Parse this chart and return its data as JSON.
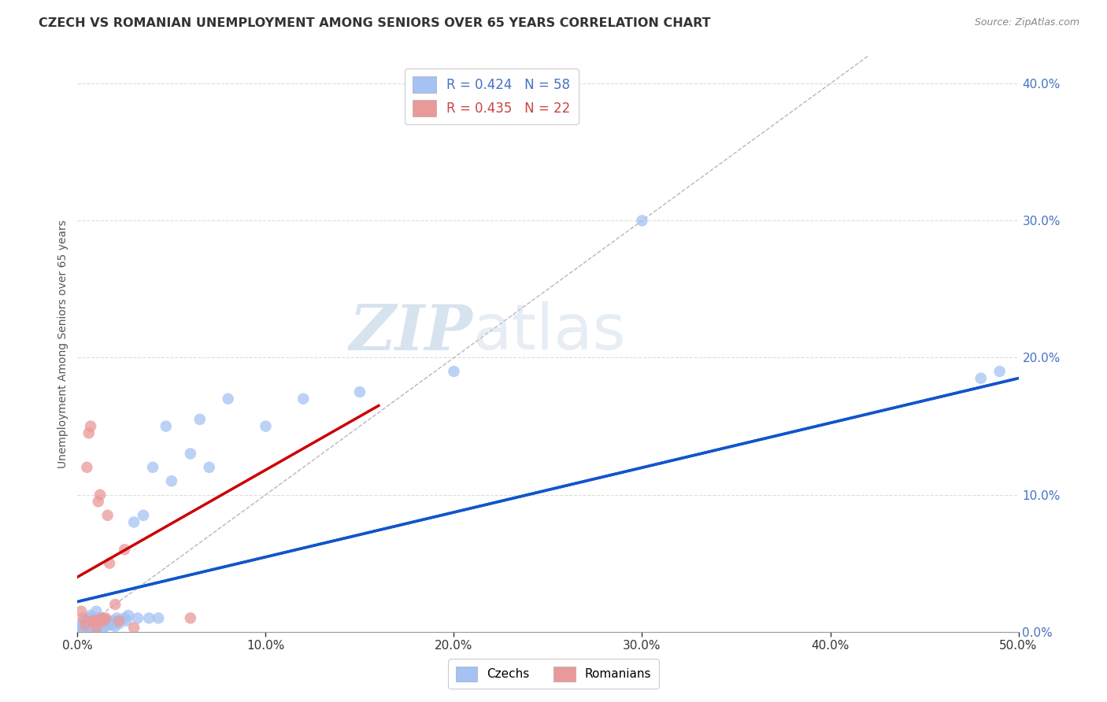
{
  "title": "CZECH VS ROMANIAN UNEMPLOYMENT AMONG SENIORS OVER 65 YEARS CORRELATION CHART",
  "source": "Source: ZipAtlas.com",
  "ylabel": "Unemployment Among Seniors over 65 years",
  "xlim": [
    0.0,
    0.5
  ],
  "ylim": [
    0.0,
    0.42
  ],
  "xlabel_ticks": [
    0.0,
    0.1,
    0.2,
    0.3,
    0.4,
    0.5
  ],
  "ylabel_ticks": [
    0.0,
    0.1,
    0.2,
    0.3,
    0.4
  ],
  "czech_R": 0.424,
  "czech_N": 58,
  "romanian_R": 0.435,
  "romanian_N": 22,
  "czech_color": "#a4c2f4",
  "romanian_color": "#ea9999",
  "czech_line_color": "#1155cc",
  "romanian_line_color": "#cc0000",
  "diagonal_color": "#b0b0b0",
  "watermark_zip": "ZIP",
  "watermark_atlas": "atlas",
  "background_color": "#ffffff",
  "grid_color": "#dddddd",
  "legend_label_czech": "Czechs",
  "legend_label_romanian": "Romanians",
  "czech_points_x": [
    0.002,
    0.002,
    0.003,
    0.003,
    0.004,
    0.004,
    0.005,
    0.005,
    0.006,
    0.006,
    0.007,
    0.007,
    0.008,
    0.008,
    0.009,
    0.009,
    0.01,
    0.01,
    0.01,
    0.01,
    0.011,
    0.011,
    0.012,
    0.012,
    0.013,
    0.013,
    0.014,
    0.015,
    0.015,
    0.016,
    0.017,
    0.018,
    0.019,
    0.02,
    0.021,
    0.022,
    0.025,
    0.026,
    0.027,
    0.03,
    0.032,
    0.035,
    0.038,
    0.04,
    0.043,
    0.047,
    0.05,
    0.06,
    0.065,
    0.07,
    0.08,
    0.1,
    0.12,
    0.15,
    0.2,
    0.3,
    0.48,
    0.49
  ],
  "czech_points_y": [
    0.002,
    0.005,
    0.002,
    0.007,
    0.003,
    0.005,
    0.003,
    0.008,
    0.003,
    0.01,
    0.004,
    0.012,
    0.003,
    0.009,
    0.003,
    0.01,
    0.003,
    0.006,
    0.01,
    0.015,
    0.005,
    0.008,
    0.004,
    0.01,
    0.003,
    0.008,
    0.006,
    0.004,
    0.009,
    0.005,
    0.007,
    0.005,
    0.008,
    0.004,
    0.01,
    0.006,
    0.01,
    0.008,
    0.012,
    0.08,
    0.01,
    0.085,
    0.01,
    0.12,
    0.01,
    0.15,
    0.11,
    0.13,
    0.155,
    0.12,
    0.17,
    0.15,
    0.17,
    0.175,
    0.19,
    0.3,
    0.185,
    0.19
  ],
  "romanian_points_x": [
    0.002,
    0.003,
    0.004,
    0.005,
    0.006,
    0.007,
    0.008,
    0.009,
    0.01,
    0.01,
    0.011,
    0.012,
    0.013,
    0.014,
    0.015,
    0.016,
    0.017,
    0.02,
    0.022,
    0.025,
    0.03,
    0.06
  ],
  "romanian_points_y": [
    0.015,
    0.01,
    0.005,
    0.12,
    0.145,
    0.15,
    0.008,
    0.008,
    0.003,
    0.008,
    0.095,
    0.1,
    0.01,
    0.008,
    0.01,
    0.085,
    0.05,
    0.02,
    0.008,
    0.06,
    0.003,
    0.01
  ],
  "czech_line_x0": 0.0,
  "czech_line_y0": 0.022,
  "czech_line_x1": 0.5,
  "czech_line_y1": 0.185,
  "romanian_line_x0": 0.0,
  "romanian_line_y0": 0.04,
  "romanian_line_x1": 0.16,
  "romanian_line_y1": 0.165
}
